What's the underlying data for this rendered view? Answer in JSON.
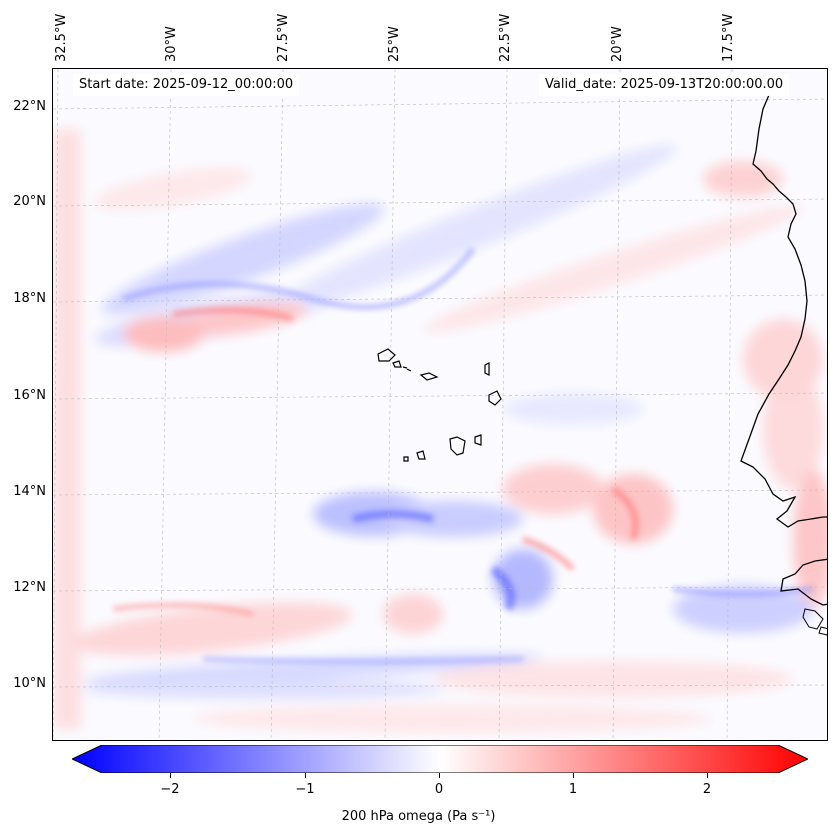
{
  "map": {
    "start_label": "Start date: 2025-09-12_00:00:00",
    "valid_label": "Valid_date: 2025-09-13T20:00:00.00",
    "lon_labels": [
      "32.5°W",
      "30°W",
      "27.5°W",
      "25°W",
      "22.5°W",
      "20°W",
      "17.5°W"
    ],
    "lat_labels": [
      "22°N",
      "20°N",
      "18°N",
      "16°N",
      "14°N",
      "12°N",
      "10°N"
    ],
    "variable": "200 hPa omega",
    "units": "(Pa s⁻¹)",
    "colormap": {
      "negative": "#0000ff",
      "zero": "#ffffff",
      "positive": "#ff0000"
    },
    "colorbar": {
      "min": -2.5,
      "max": 2.5,
      "ticks": [
        "−2",
        "−1",
        "0",
        "1",
        "2"
      ],
      "extend": "both"
    },
    "coastline_color": "#000000",
    "grid": "dashed light gray"
  }
}
